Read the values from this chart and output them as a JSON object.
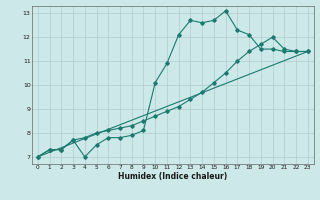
{
  "title": "",
  "xlabel": "Humidex (Indice chaleur)",
  "bg_color": "#cde8e8",
  "grid_color": "#b0cccc",
  "line_color": "#1a7a6e",
  "xlim": [
    -0.5,
    23.5
  ],
  "ylim": [
    6.7,
    13.3
  ],
  "xticks": [
    0,
    1,
    2,
    3,
    4,
    5,
    6,
    7,
    8,
    9,
    10,
    11,
    12,
    13,
    14,
    15,
    16,
    17,
    18,
    19,
    20,
    21,
    22,
    23
  ],
  "yticks": [
    7,
    8,
    9,
    10,
    11,
    12,
    13
  ],
  "line1_x": [
    0,
    1,
    2,
    3,
    4,
    5,
    6,
    7,
    8,
    9,
    10,
    11,
    12,
    13,
    14,
    15,
    16,
    17,
    18,
    19,
    20,
    21,
    22,
    23
  ],
  "line1_y": [
    7.0,
    7.3,
    7.3,
    7.7,
    7.0,
    7.5,
    7.8,
    7.8,
    7.9,
    8.1,
    10.1,
    10.9,
    12.1,
    12.7,
    12.6,
    12.7,
    13.1,
    12.3,
    12.1,
    11.5,
    11.5,
    11.4,
    11.4,
    11.4
  ],
  "line2_x": [
    0,
    1,
    2,
    3,
    4,
    5,
    6,
    7,
    8,
    9,
    10,
    11,
    12,
    13,
    14,
    15,
    16,
    17,
    18,
    19,
    20,
    21,
    22,
    23
  ],
  "line2_y": [
    7.0,
    7.3,
    7.3,
    7.7,
    7.8,
    8.0,
    8.1,
    8.2,
    8.3,
    8.5,
    8.7,
    8.9,
    9.1,
    9.4,
    9.7,
    10.1,
    10.5,
    11.0,
    11.4,
    11.7,
    12.0,
    11.5,
    11.4,
    11.4
  ],
  "line3_x": [
    0,
    23
  ],
  "line3_y": [
    7.0,
    11.4
  ]
}
